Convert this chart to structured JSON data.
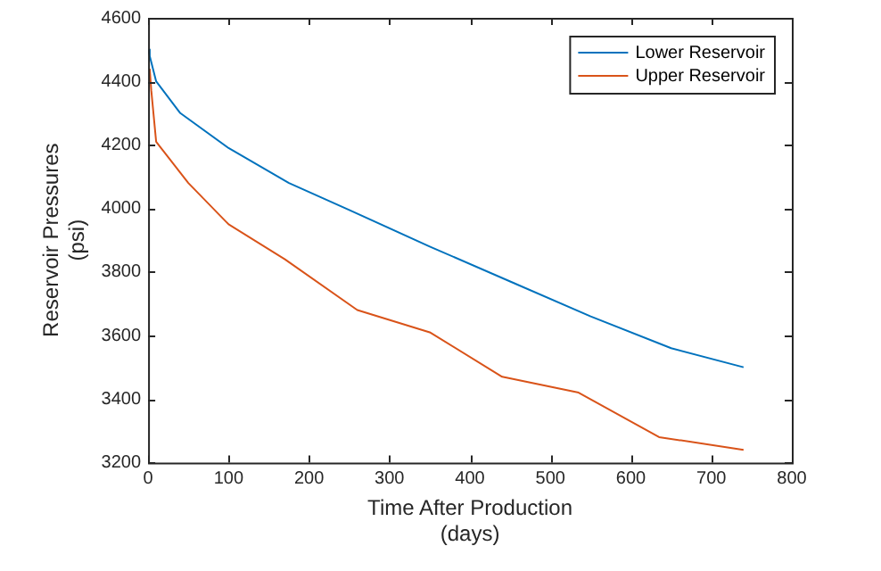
{
  "chart_data": {
    "type": "line",
    "xlabel": "Time After Production\n(days)",
    "ylabel": "Reservoir Pressures\n(psi)",
    "xlim": [
      0,
      800
    ],
    "xticks": [
      0,
      100,
      200,
      300,
      400,
      500,
      600,
      700,
      800
    ],
    "ylim": [
      3200,
      4600
    ],
    "yticks": [
      3200,
      3400,
      3600,
      3800,
      4000,
      4200,
      4400,
      4600
    ],
    "grid": false,
    "legend": "top right",
    "marker": "none",
    "line_style": "solid",
    "series": [
      {
        "name": "Lower Reservoir",
        "color": "#0072bd",
        "x": [
          0,
          2,
          10,
          40,
          100,
          175,
          250,
          350,
          450,
          550,
          650,
          740
        ],
        "values": [
          4500,
          4480,
          4400,
          4300,
          4190,
          4080,
          3995,
          3880,
          3770,
          3660,
          3560,
          3500
        ]
      },
      {
        "name": "Upper Reservoir",
        "color": "#d95319",
        "x": [
          2,
          4,
          10,
          50,
          100,
          170,
          260,
          350,
          440,
          535,
          635,
          740
        ],
        "values": [
          4440,
          4370,
          4210,
          4080,
          3950,
          3840,
          3680,
          3610,
          3470,
          3420,
          3280,
          3240
        ]
      }
    ]
  }
}
